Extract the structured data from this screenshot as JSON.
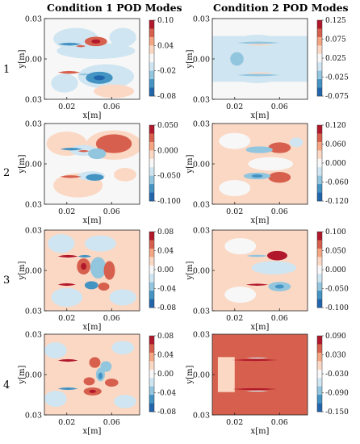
{
  "titles": {
    "left": "Condition 1 POD Modes",
    "right": "Condition 2 POD Modes"
  },
  "row_labels": [
    "1",
    "2",
    "3",
    "4"
  ],
  "colors": {
    "dark_red": "#b2182b",
    "red": "#d6604d",
    "salmon": "#f4a582",
    "light_red": "#fbd8c4",
    "white": "#f7f7f7",
    "light_blue": "#cfe5f1",
    "blue": "#92c5de",
    "mid_blue": "#4393c3",
    "dark_blue": "#2166ac"
  },
  "chart_data": [
    {
      "type": "heatmap",
      "title": "Condition 1 POD Modes",
      "row": "1",
      "xlabel": "x[m]",
      "ylabel": "y[m]",
      "xticks": [
        "0.02",
        "0.06"
      ],
      "yticks": [
        "0.03",
        "0.00",
        "0.03"
      ],
      "colorbar": [
        "0.10",
        "0.04",
        "-0.02",
        "-0.08"
      ],
      "regions": [
        {
          "kind": "blob",
          "x": 0.028,
          "y": 0.015,
          "rx": 0.02,
          "ry": 0.008,
          "level": -1
        },
        {
          "kind": "blob",
          "x": 0.07,
          "y": 0.016,
          "rx": 0.012,
          "ry": 0.007,
          "level": -1
        },
        {
          "kind": "blob",
          "x": 0.046,
          "y": 0.006,
          "rx": 0.035,
          "ry": 0.006,
          "level": -1
        },
        {
          "kind": "blob",
          "x": 0.055,
          "y": -0.013,
          "rx": 0.025,
          "ry": 0.009,
          "level": -1
        },
        {
          "kind": "blob",
          "x": 0.018,
          "y": -0.018,
          "rx": 0.012,
          "ry": 0.007,
          "level": -1
        },
        {
          "kind": "blob",
          "x": 0.062,
          "y": -0.024,
          "rx": 0.018,
          "ry": 0.005,
          "level": 1
        },
        {
          "kind": "streak",
          "x0": 0.012,
          "x1": 0.033,
          "y": 0.011,
          "h": 0.0022,
          "level": -3
        },
        {
          "kind": "streak",
          "x0": 0.028,
          "x1": 0.037,
          "y": 0.0095,
          "h": 0.0016,
          "level": 2
        },
        {
          "kind": "blob",
          "x": 0.046,
          "y": 0.013,
          "rx": 0.01,
          "ry": 0.0035,
          "level": 2
        },
        {
          "kind": "blob",
          "x": 0.046,
          "y": 0.013,
          "rx": 0.004,
          "ry": 0.0015,
          "level": 3
        },
        {
          "kind": "streak",
          "x0": 0.012,
          "x1": 0.032,
          "y": -0.01,
          "h": 0.0022,
          "level": 2
        },
        {
          "kind": "streak",
          "x0": 0.03,
          "x1": 0.042,
          "y": -0.0115,
          "h": 0.0015,
          "level": -2
        },
        {
          "kind": "blob",
          "x": 0.049,
          "y": -0.014,
          "rx": 0.012,
          "ry": 0.0045,
          "level": -3
        },
        {
          "kind": "blob",
          "x": 0.049,
          "y": -0.014,
          "rx": 0.005,
          "ry": 0.0018,
          "level": -4
        }
      ]
    },
    {
      "type": "heatmap",
      "title": "Condition 2 POD Modes",
      "row": "1",
      "xlabel": "x[m]",
      "ylabel": "y[m]",
      "xticks": [
        "0.02",
        "0.06"
      ],
      "yticks": [
        "0.03",
        "0.00",
        "0.03"
      ],
      "colorbar": [
        "0.125",
        "0.075",
        "0.025",
        "-0.025",
        "-0.075"
      ],
      "regions": [
        {
          "kind": "rect",
          "x0": 0.0,
          "x1": 0.085,
          "y0": -0.017,
          "y1": 0.017,
          "level": -1
        },
        {
          "kind": "blob",
          "x": 0.04,
          "y": 0.0,
          "rx": 0.035,
          "ry": 0.018,
          "level": -1
        },
        {
          "kind": "blob",
          "x": 0.022,
          "y": 0.0,
          "rx": 0.006,
          "ry": 0.005,
          "level": -2
        },
        {
          "kind": "streak",
          "x0": 0.022,
          "x1": 0.06,
          "y": 0.012,
          "h": 0.0018,
          "level": -2
        },
        {
          "kind": "streak",
          "x0": 0.03,
          "x1": 0.055,
          "y": 0.0105,
          "h": 0.0012,
          "level": 1
        },
        {
          "kind": "streak",
          "x0": 0.022,
          "x1": 0.06,
          "y": -0.012,
          "h": 0.0018,
          "level": -2
        },
        {
          "kind": "streak",
          "x0": 0.03,
          "x1": 0.055,
          "y": -0.0105,
          "h": 0.0012,
          "level": 1
        }
      ]
    },
    {
      "type": "heatmap",
      "title": "Condition 1 POD Modes",
      "row": "2",
      "xlabel": "x[m]",
      "ylabel": "y[m]",
      "xticks": [
        "0.02",
        "0.06"
      ],
      "yticks": [
        "0.03",
        "0.00",
        "0.03"
      ],
      "colorbar": [
        "0.050",
        "0.000",
        "-0.050",
        "-0.100"
      ],
      "regions": [
        {
          "kind": "blob",
          "x": 0.02,
          "y": 0.015,
          "rx": 0.018,
          "ry": 0.009,
          "level": 1
        },
        {
          "kind": "blob",
          "x": 0.062,
          "y": 0.014,
          "rx": 0.025,
          "ry": 0.011,
          "level": 1
        },
        {
          "kind": "blob",
          "x": 0.062,
          "y": 0.015,
          "rx": 0.016,
          "ry": 0.007,
          "level": 2
        },
        {
          "kind": "blob",
          "x": 0.03,
          "y": -0.016,
          "rx": 0.022,
          "ry": 0.009,
          "level": 1
        },
        {
          "kind": "blob",
          "x": 0.072,
          "y": -0.008,
          "rx": 0.01,
          "ry": 0.005,
          "level": 1
        },
        {
          "kind": "blob",
          "x": 0.035,
          "y": 0.01,
          "rx": 0.012,
          "ry": 0.004,
          "level": -1
        },
        {
          "kind": "streak",
          "x0": 0.014,
          "x1": 0.034,
          "y": 0.011,
          "h": 0.002,
          "level": -3
        },
        {
          "kind": "streak",
          "x0": 0.03,
          "x1": 0.04,
          "y": 0.0095,
          "h": 0.0016,
          "level": 2
        },
        {
          "kind": "blob",
          "x": 0.047,
          "y": 0.0075,
          "rx": 0.008,
          "ry": 0.004,
          "level": -2
        },
        {
          "kind": "blob",
          "x": 0.042,
          "y": -0.009,
          "rx": 0.012,
          "ry": 0.0035,
          "level": -1
        },
        {
          "kind": "streak",
          "x0": 0.014,
          "x1": 0.033,
          "y": -0.0095,
          "h": 0.002,
          "level": 2
        },
        {
          "kind": "blob",
          "x": 0.045,
          "y": -0.01,
          "rx": 0.008,
          "ry": 0.0025,
          "level": -3
        }
      ]
    },
    {
      "type": "heatmap",
      "title": "Condition 2 POD Modes",
      "row": "2",
      "xlabel": "x[m]",
      "ylabel": "y[m]",
      "xticks": [
        "0.02",
        "0.06"
      ],
      "yticks": [
        "0.03",
        "0.00",
        "0.03"
      ],
      "colorbar": [
        "0.120",
        "0.060",
        "0.000",
        "-0.060",
        "-0.120"
      ],
      "regions": [
        {
          "kind": "rect",
          "x0": 0.0,
          "x1": 0.085,
          "y0": -0.03,
          "y1": 0.03,
          "level": 1
        },
        {
          "kind": "blob",
          "x": 0.02,
          "y": 0.017,
          "rx": 0.014,
          "ry": 0.006,
          "level": 0
        },
        {
          "kind": "blob",
          "x": 0.02,
          "y": -0.018,
          "rx": 0.014,
          "ry": 0.006,
          "level": 0
        },
        {
          "kind": "blob",
          "x": 0.052,
          "y": 0.0,
          "rx": 0.02,
          "ry": 0.005,
          "level": 0
        },
        {
          "kind": "blob",
          "x": 0.06,
          "y": 0.012,
          "rx": 0.01,
          "ry": 0.004,
          "level": 2
        },
        {
          "kind": "blob",
          "x": 0.06,
          "y": -0.01,
          "rx": 0.01,
          "ry": 0.004,
          "level": 2
        },
        {
          "kind": "blob",
          "x": 0.042,
          "y": 0.0105,
          "rx": 0.012,
          "ry": 0.0025,
          "level": -2
        },
        {
          "kind": "blob",
          "x": 0.04,
          "y": -0.009,
          "rx": 0.012,
          "ry": 0.0025,
          "level": -2
        },
        {
          "kind": "blob",
          "x": 0.04,
          "y": -0.009,
          "rx": 0.005,
          "ry": 0.0012,
          "level": -3
        },
        {
          "kind": "blob",
          "x": 0.075,
          "y": 0.016,
          "rx": 0.006,
          "ry": 0.0035,
          "level": -1
        }
      ]
    },
    {
      "type": "heatmap",
      "title": "Condition 1 POD Modes",
      "row": "3",
      "xlabel": "x[m]",
      "ylabel": "y[m]",
      "xticks": [
        "0.02",
        "0.06"
      ],
      "yticks": [
        "0.03",
        "0.00",
        "0.03"
      ],
      "colorbar": [
        "0.08",
        "0.04",
        "0.00",
        "-0.04",
        "-0.08"
      ],
      "regions": [
        {
          "kind": "rect",
          "x0": 0.0,
          "x1": 0.085,
          "y0": -0.03,
          "y1": 0.03,
          "level": 1
        },
        {
          "kind": "blob",
          "x": 0.015,
          "y": 0.02,
          "rx": 0.012,
          "ry": 0.007,
          "level": -1
        },
        {
          "kind": "blob",
          "x": 0.05,
          "y": 0.02,
          "rx": 0.014,
          "ry": 0.006,
          "level": -1
        },
        {
          "kind": "blob",
          "x": 0.02,
          "y": -0.02,
          "rx": 0.014,
          "ry": 0.007,
          "level": -1
        },
        {
          "kind": "blob",
          "x": 0.07,
          "y": -0.02,
          "rx": 0.012,
          "ry": 0.006,
          "level": -1
        },
        {
          "kind": "blob",
          "x": 0.035,
          "y": 0.003,
          "rx": 0.006,
          "ry": 0.006,
          "level": 2
        },
        {
          "kind": "blob",
          "x": 0.035,
          "y": 0.003,
          "rx": 0.0025,
          "ry": 0.0025,
          "level": 3
        },
        {
          "kind": "blob",
          "x": 0.048,
          "y": 0.002,
          "rx": 0.007,
          "ry": 0.008,
          "level": -2
        },
        {
          "kind": "blob",
          "x": 0.058,
          "y": 0.0,
          "rx": 0.005,
          "ry": 0.007,
          "level": 2
        },
        {
          "kind": "streak",
          "x0": 0.012,
          "x1": 0.03,
          "y": 0.0105,
          "h": 0.002,
          "level": 3
        },
        {
          "kind": "streak",
          "x0": 0.03,
          "x1": 0.042,
          "y": 0.0105,
          "h": 0.002,
          "level": -3
        },
        {
          "kind": "streak",
          "x0": 0.012,
          "x1": 0.028,
          "y": -0.0105,
          "h": 0.002,
          "level": 3
        },
        {
          "kind": "blob",
          "x": 0.042,
          "y": -0.011,
          "rx": 0.006,
          "ry": 0.003,
          "level": -3
        },
        {
          "kind": "blob",
          "x": 0.053,
          "y": -0.012,
          "rx": 0.005,
          "ry": 0.003,
          "level": 2
        }
      ]
    },
    {
      "type": "heatmap",
      "title": "Condition 2 POD Modes",
      "row": "3",
      "xlabel": "x[m]",
      "ylabel": "y[m]",
      "xticks": [
        "0.02",
        "0.06"
      ],
      "yticks": [
        "0.03",
        "0.00",
        "0.03"
      ],
      "colorbar": [
        "0.100",
        "0.050",
        "0.000",
        "-0.050",
        "-0.100"
      ],
      "regions": [
        {
          "kind": "rect",
          "x0": 0.0,
          "x1": 0.085,
          "y0": -0.03,
          "y1": 0.03,
          "level": 1
        },
        {
          "kind": "blob",
          "x": 0.025,
          "y": 0.018,
          "rx": 0.014,
          "ry": 0.006,
          "level": 0
        },
        {
          "kind": "blob",
          "x": 0.025,
          "y": -0.018,
          "rx": 0.014,
          "ry": 0.006,
          "level": 0
        },
        {
          "kind": "blob",
          "x": 0.055,
          "y": 0.002,
          "rx": 0.02,
          "ry": 0.005,
          "level": -1
        },
        {
          "kind": "streak",
          "x0": 0.03,
          "x1": 0.05,
          "y": 0.0108,
          "h": 0.0016,
          "level": -2
        },
        {
          "kind": "blob",
          "x": 0.058,
          "y": 0.011,
          "rx": 0.009,
          "ry": 0.0035,
          "level": 3
        },
        {
          "kind": "streak",
          "x0": 0.03,
          "x1": 0.05,
          "y": -0.0106,
          "h": 0.0016,
          "level": 3
        },
        {
          "kind": "blob",
          "x": 0.06,
          "y": -0.012,
          "rx": 0.01,
          "ry": 0.0035,
          "level": -2
        },
        {
          "kind": "blob",
          "x": 0.06,
          "y": -0.012,
          "rx": 0.004,
          "ry": 0.0015,
          "level": -3
        }
      ]
    },
    {
      "type": "heatmap",
      "title": "Condition 1 POD Modes",
      "row": "4",
      "xlabel": "x[m]",
      "ylabel": "y[m]",
      "xticks": [
        "0.02",
        "0.06"
      ],
      "yticks": [
        "0.03",
        "0.00",
        "0.03"
      ],
      "colorbar": [
        "0.08",
        "0.04",
        "0.00",
        "-0.04",
        "-0.08"
      ],
      "regions": [
        {
          "kind": "rect",
          "x0": 0.0,
          "x1": 0.085,
          "y0": -0.03,
          "y1": 0.03,
          "level": 1
        },
        {
          "kind": "blob",
          "x": 0.01,
          "y": 0.018,
          "rx": 0.01,
          "ry": 0.006,
          "level": -1
        },
        {
          "kind": "blob",
          "x": 0.07,
          "y": 0.02,
          "rx": 0.01,
          "ry": 0.005,
          "level": -1
        },
        {
          "kind": "blob",
          "x": 0.01,
          "y": -0.018,
          "rx": 0.01,
          "ry": 0.006,
          "level": -1
        },
        {
          "kind": "blob",
          "x": 0.072,
          "y": -0.02,
          "rx": 0.01,
          "ry": 0.005,
          "level": -1
        },
        {
          "kind": "blob",
          "x": 0.045,
          "y": 0.009,
          "rx": 0.005,
          "ry": 0.004,
          "level": 2
        },
        {
          "kind": "blob",
          "x": 0.055,
          "y": 0.006,
          "rx": 0.005,
          "ry": 0.004,
          "level": -2
        },
        {
          "kind": "blob",
          "x": 0.05,
          "y": 0.0,
          "rx": 0.004,
          "ry": 0.005,
          "level": -2
        },
        {
          "kind": "blob",
          "x": 0.05,
          "y": -0.001,
          "rx": 0.002,
          "ry": 0.0025,
          "level": -3
        },
        {
          "kind": "blob",
          "x": 0.06,
          "y": -0.006,
          "rx": 0.006,
          "ry": 0.003,
          "level": 2
        },
        {
          "kind": "blob",
          "x": 0.04,
          "y": -0.005,
          "rx": 0.005,
          "ry": 0.003,
          "level": 2
        },
        {
          "kind": "streak",
          "x0": 0.012,
          "x1": 0.03,
          "y": 0.0105,
          "h": 0.002,
          "level": 3
        },
        {
          "kind": "streak",
          "x0": 0.012,
          "x1": 0.03,
          "y": -0.0105,
          "h": 0.002,
          "level": -3
        },
        {
          "kind": "blob",
          "x": 0.043,
          "y": -0.0125,
          "rx": 0.008,
          "ry": 0.003,
          "level": 2
        },
        {
          "kind": "blob",
          "x": 0.043,
          "y": -0.0125,
          "rx": 0.003,
          "ry": 0.0012,
          "level": 3
        }
      ]
    },
    {
      "type": "heatmap",
      "title": "Condition 2 POD Modes",
      "row": "4",
      "xlabel": "x[m]",
      "ylabel": "y[m]",
      "xticks": [
        "0.02",
        "0.06"
      ],
      "yticks": [
        "0.03",
        "0.00",
        "0.03"
      ],
      "colorbar": [
        "0.090",
        "0.030",
        "-0.030",
        "-0.090",
        "-0.150"
      ],
      "regions": [
        {
          "kind": "rect",
          "x0": 0.0,
          "x1": 0.085,
          "y0": -0.03,
          "y1": 0.03,
          "level": 2
        },
        {
          "kind": "rect",
          "x0": 0.005,
          "x1": 0.02,
          "y0": -0.013,
          "y1": 0.013,
          "level": 1
        },
        {
          "kind": "blob",
          "x": 0.06,
          "y": 0.0,
          "rx": 0.025,
          "ry": 0.006,
          "level": 2
        },
        {
          "kind": "streak",
          "x0": 0.018,
          "x1": 0.058,
          "y": 0.0108,
          "h": 0.0014,
          "level": 3
        },
        {
          "kind": "streak",
          "x0": 0.018,
          "x1": 0.058,
          "y": -0.0108,
          "h": 0.0014,
          "level": 3
        },
        {
          "kind": "streak",
          "x0": 0.03,
          "x1": 0.05,
          "y": 0.0123,
          "h": 0.0008,
          "level": -1
        },
        {
          "kind": "streak",
          "x0": 0.03,
          "x1": 0.05,
          "y": -0.0123,
          "h": 0.0008,
          "level": -1
        }
      ]
    }
  ]
}
